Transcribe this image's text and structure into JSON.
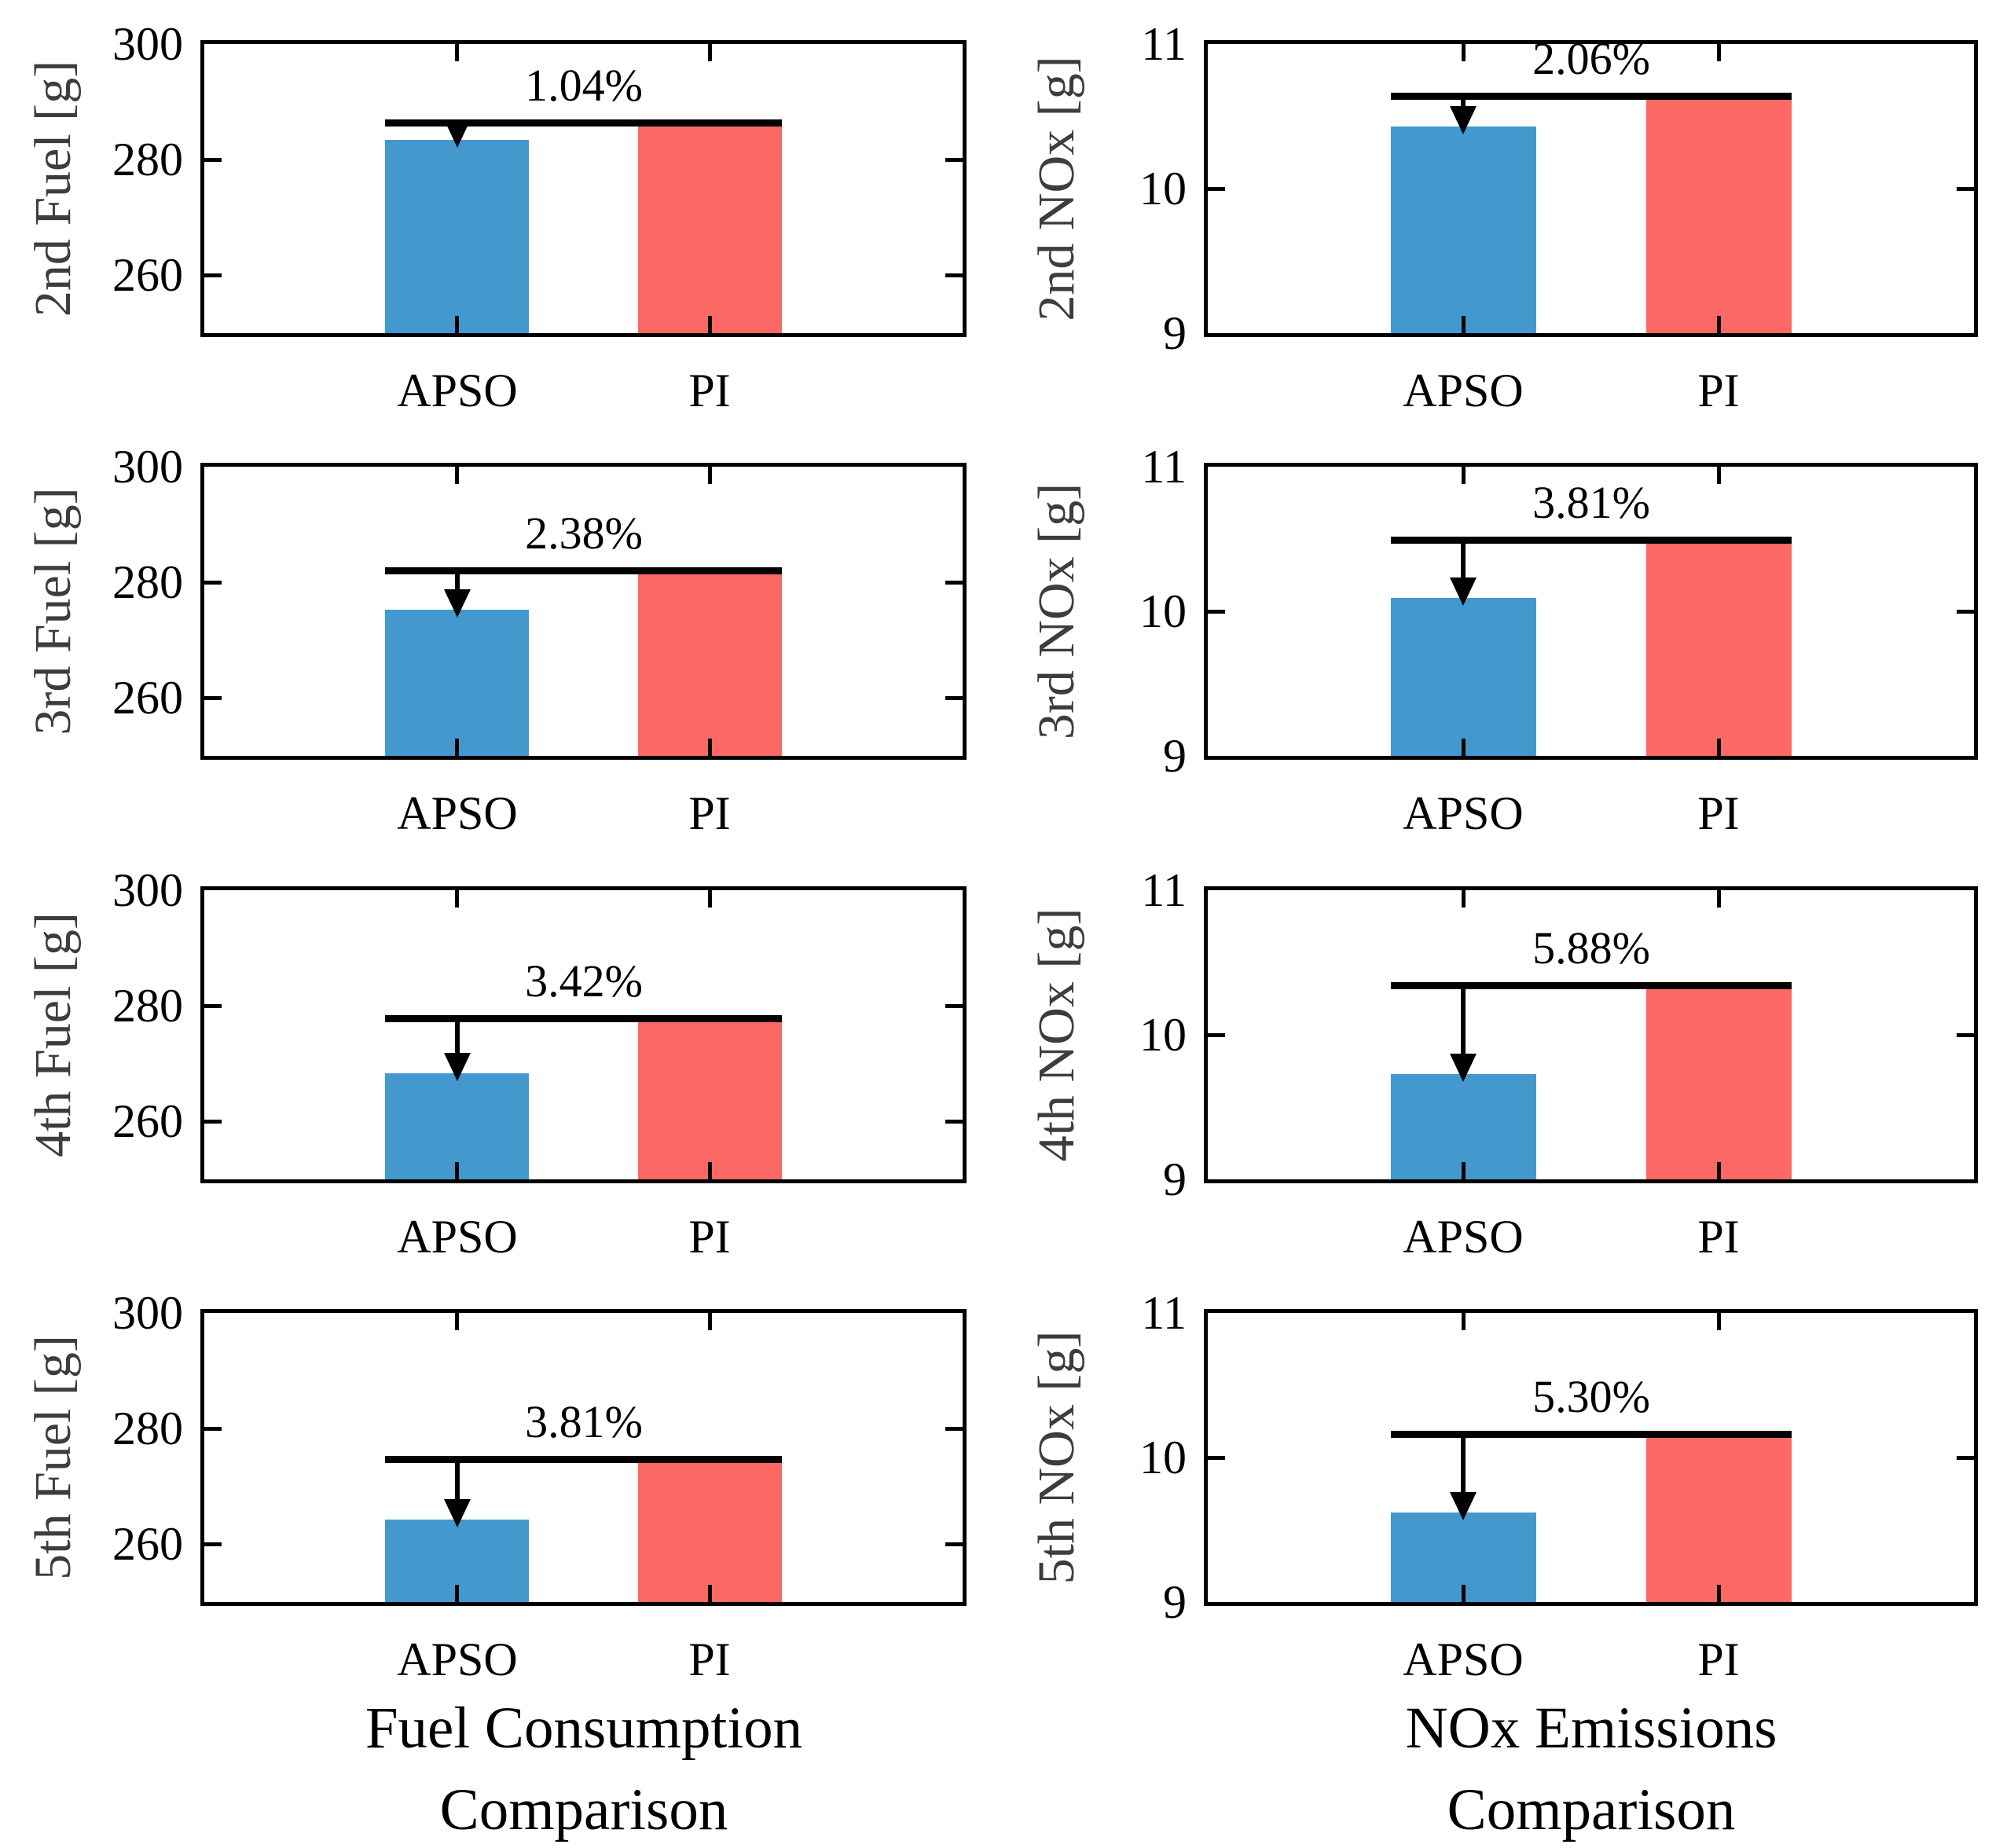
{
  "figure": {
    "column_titles": [
      {
        "line1": "Fuel Consumption",
        "line2": "Comparison"
      },
      {
        "line1": "NOx Emissions",
        "line2": "Comparison"
      }
    ]
  },
  "colors": {
    "apso_bar": "#4399CE",
    "pi_bar": "#FC6864",
    "axis": "#000000",
    "ylabel_text": "#3d3d3d",
    "annotation": "#000000"
  },
  "chart_data": [
    {
      "type": "bar",
      "id": "fuel-2nd",
      "ylabel": "2nd Fuel [g]",
      "categories": [
        "APSO",
        "PI"
      ],
      "values": [
        283.4,
        286.4
      ],
      "annotation": "1.04%",
      "ylim": [
        250,
        300
      ],
      "yticks": [
        300,
        280,
        260
      ],
      "ytick_labels": [
        "300",
        "280",
        "260"
      ],
      "legend": "none",
      "grid": false
    },
    {
      "type": "bar",
      "id": "nox-2nd",
      "ylabel": "2nd NOx [g]",
      "categories": [
        "APSO",
        "PI"
      ],
      "values": [
        10.43,
        10.64
      ],
      "annotation": "2.06%",
      "ylim": [
        9,
        11
      ],
      "yticks": [
        11,
        10,
        9
      ],
      "ytick_labels": [
        "11",
        "10",
        "9"
      ],
      "legend": "none",
      "grid": false
    },
    {
      "type": "bar",
      "id": "fuel-3rd",
      "ylabel": "3rd Fuel [g]",
      "categories": [
        "APSO",
        "PI"
      ],
      "values": [
        275.3,
        282.0
      ],
      "annotation": "2.38%",
      "ylim": [
        250,
        300
      ],
      "yticks": [
        300,
        280,
        260
      ],
      "ytick_labels": [
        "300",
        "280",
        "260"
      ],
      "legend": "none",
      "grid": false
    },
    {
      "type": "bar",
      "id": "nox-3rd",
      "ylabel": "3rd NOx [g]",
      "categories": [
        "APSO",
        "PI"
      ],
      "values": [
        10.09,
        10.49
      ],
      "annotation": "3.81%",
      "ylim": [
        9,
        11
      ],
      "yticks": [
        11,
        10,
        9
      ],
      "ytick_labels": [
        "11",
        "10",
        "9"
      ],
      "legend": "none",
      "grid": false
    },
    {
      "type": "bar",
      "id": "fuel-4th",
      "ylabel": "4th Fuel [g]",
      "categories": [
        "APSO",
        "PI"
      ],
      "values": [
        268.3,
        277.8
      ],
      "annotation": "3.42%",
      "ylim": [
        250,
        300
      ],
      "yticks": [
        300,
        280,
        260
      ],
      "ytick_labels": [
        "300",
        "280",
        "260"
      ],
      "legend": "none",
      "grid": false
    },
    {
      "type": "bar",
      "id": "nox-4th",
      "ylabel": "4th NOx [g]",
      "categories": [
        "APSO",
        "PI"
      ],
      "values": [
        9.73,
        10.34
      ],
      "annotation": "5.88%",
      "ylim": [
        9,
        11
      ],
      "yticks": [
        11,
        10,
        9
      ],
      "ytick_labels": [
        "11",
        "10",
        "9"
      ],
      "legend": "none",
      "grid": false
    },
    {
      "type": "bar",
      "id": "fuel-5th",
      "ylabel": "5th Fuel [g]",
      "categories": [
        "APSO",
        "PI"
      ],
      "values": [
        264.2,
        274.7
      ],
      "annotation": "3.81%",
      "ylim": [
        250,
        300
      ],
      "yticks": [
        300,
        280,
        260
      ],
      "ytick_labels": [
        "300",
        "280",
        "260"
      ],
      "legend": "none",
      "grid": false
    },
    {
      "type": "bar",
      "id": "nox-5th",
      "ylabel": "5th NOx [g]",
      "categories": [
        "APSO",
        "PI"
      ],
      "values": [
        9.62,
        10.16
      ],
      "annotation": "5.30%",
      "ylim": [
        9,
        11
      ],
      "yticks": [
        11,
        10,
        9
      ],
      "ytick_labels": [
        "11",
        "10",
        "9"
      ],
      "legend": "none",
      "grid": false
    }
  ]
}
